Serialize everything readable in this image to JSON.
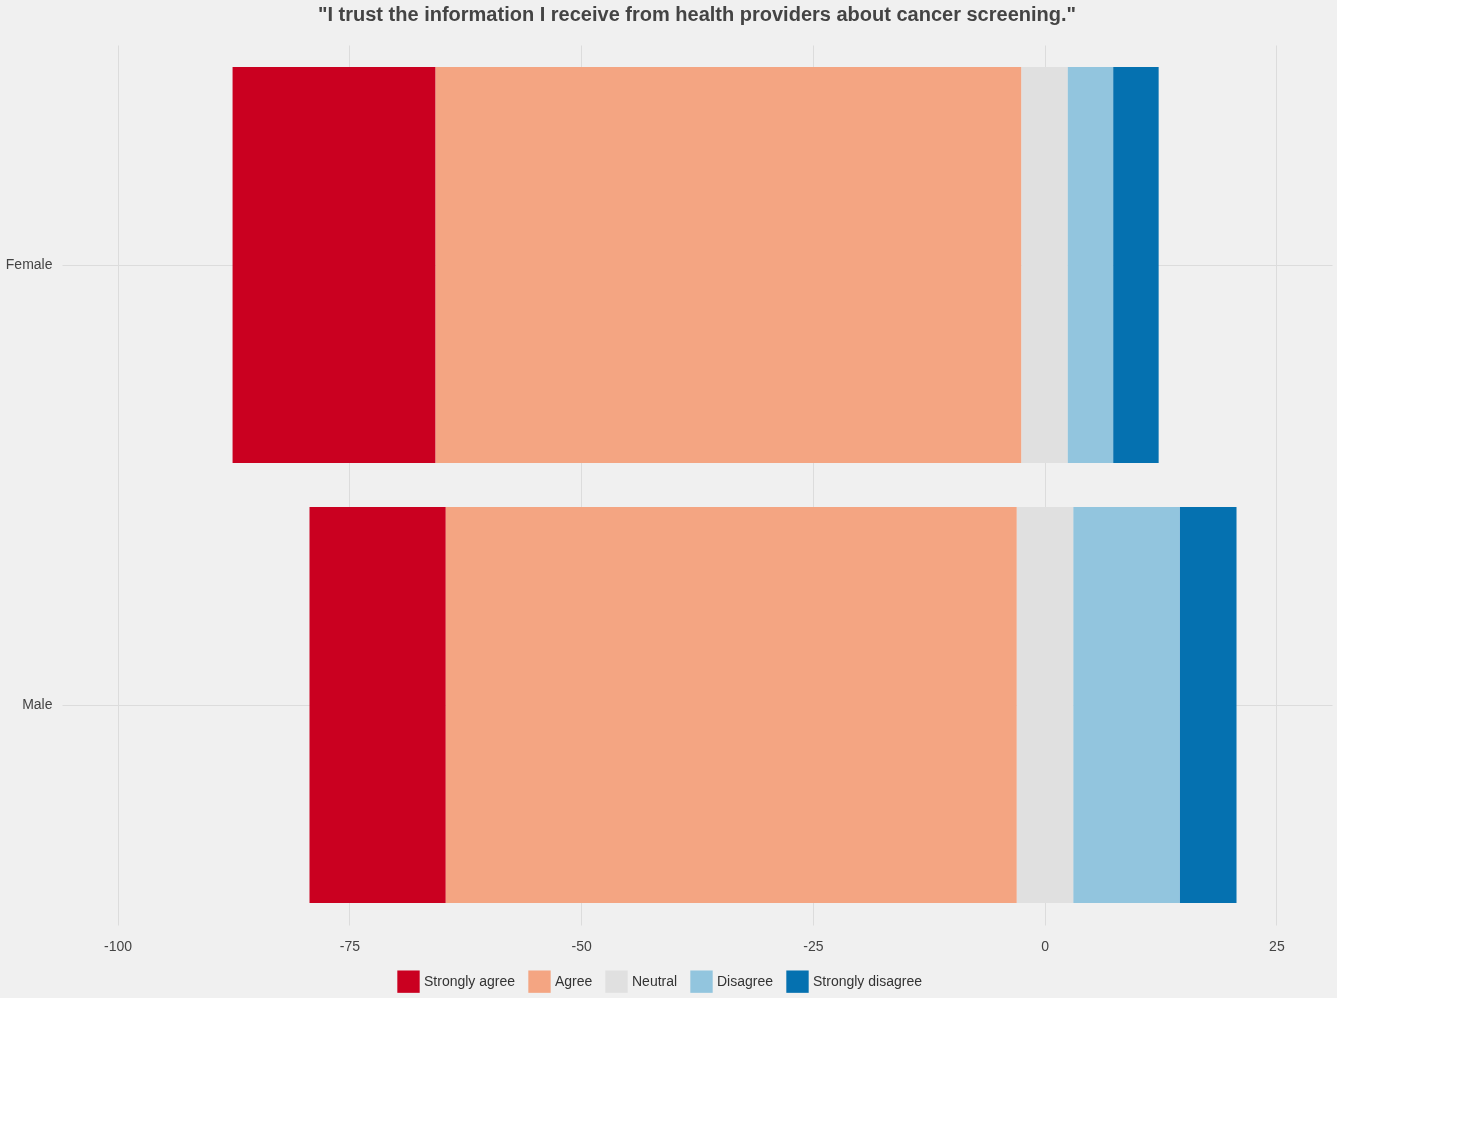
{
  "chart_data": {
    "type": "bar",
    "orientation": "horizontal",
    "title": "\"I trust the information I receive from health providers about cancer screening.\"",
    "categories": [
      "Female",
      "Male"
    ],
    "series": [
      {
        "name": "Strongly agree",
        "color": "#ca0020",
        "values": [
          21.9,
          14.7
        ],
        "base": [
          -87.6,
          -79.3
        ]
      },
      {
        "name": "Agree",
        "color": "#f4a582",
        "values": [
          63.2,
          61.6
        ],
        "base": [
          -65.7,
          -64.6
        ]
      },
      {
        "name": "Neutral",
        "color": "#e0e0e0",
        "values": [
          5.0,
          6.1
        ],
        "base": [
          -2.5,
          -3.0
        ]
      },
      {
        "name": "Disagree",
        "color": "#92c5de",
        "values": [
          4.9,
          11.5
        ],
        "base": [
          2.5,
          3.1
        ]
      },
      {
        "name": "Strongly disagree",
        "color": "#0571b0",
        "values": [
          4.9,
          6.1
        ],
        "base": [
          7.4,
          14.6
        ]
      }
    ],
    "xlim": [
      -106,
      31
    ],
    "xticks": [
      -100,
      -75,
      -50,
      -25,
      0,
      25
    ],
    "grid": true,
    "legend": "bottom"
  }
}
